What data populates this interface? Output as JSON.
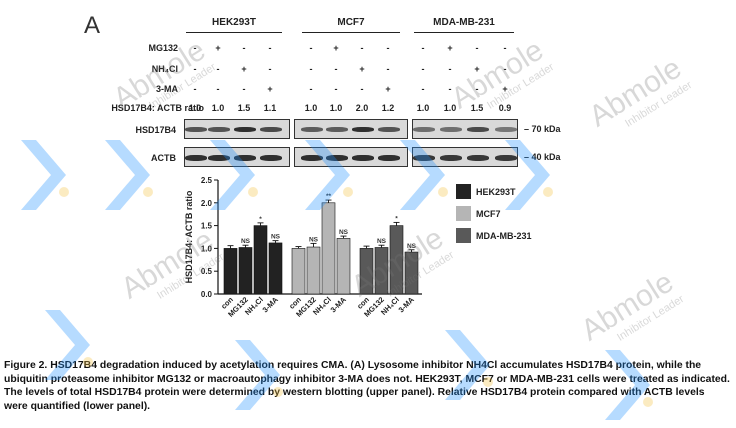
{
  "panel_letter": "A",
  "cell_lines": [
    "HEK293T",
    "MCF7",
    "MDA-MB-231"
  ],
  "treatment_rows": [
    {
      "label": "MG132",
      "values": [
        "-",
        "+",
        "-",
        "-",
        "-",
        "+",
        "-",
        "-",
        "-",
        "+",
        "-",
        "-"
      ]
    },
    {
      "label": "NH₄Cl",
      "values": [
        "-",
        "-",
        "+",
        "-",
        "-",
        "-",
        "+",
        "-",
        "-",
        "-",
        "+",
        "-"
      ]
    },
    {
      "label": "3-MA",
      "values": [
        "-",
        "-",
        "-",
        "+",
        "-",
        "-",
        "-",
        "+",
        "-",
        "-",
        "-",
        "+"
      ]
    }
  ],
  "ratio_label": "HSD17B4: ACTB ratio",
  "ratios": [
    "1.0",
    "1.0",
    "1.5",
    "1.1",
    "1.0",
    "1.0",
    "2.0",
    "1.2",
    "1.0",
    "1.0",
    "1.5",
    "0.9"
  ],
  "blots": [
    {
      "label": "HSD17B4",
      "kda": "– 70 kDa",
      "intensity": [
        0.75,
        0.75,
        0.95,
        0.8,
        0.7,
        0.7,
        0.95,
        0.75,
        0.6,
        0.6,
        0.8,
        0.55
      ]
    },
    {
      "label": "ACTB",
      "kda": "– 40 kDa",
      "intensity": [
        0.95,
        0.95,
        0.95,
        0.95,
        0.95,
        0.95,
        0.95,
        0.95,
        0.9,
        0.9,
        0.9,
        0.9
      ]
    }
  ],
  "chart_data": {
    "type": "bar",
    "ylabel": "HSD17B4: ACTB ratio",
    "ylim": [
      0,
      2.5
    ],
    "yticks": [
      "0.0",
      "0.5",
      "1.0",
      "1.5",
      "2.0",
      "2.5"
    ],
    "categories": [
      "con",
      "MG132",
      "NH₄Cl",
      "3-MA"
    ],
    "series": [
      {
        "name": "HEK293T",
        "color": "#222222",
        "values": [
          1.0,
          1.02,
          1.5,
          1.12
        ],
        "errors": [
          0.06,
          0.05,
          0.06,
          0.05
        ],
        "labels": [
          "",
          "NS",
          "*",
          "NS"
        ]
      },
      {
        "name": "MCF7",
        "color": "#b5b5b5",
        "values": [
          1.0,
          1.03,
          2.0,
          1.22
        ],
        "errors": [
          0.04,
          0.08,
          0.06,
          0.05
        ],
        "labels": [
          "",
          "NS",
          "**",
          "NS"
        ]
      },
      {
        "name": "MDA-MB-231",
        "color": "#595959",
        "values": [
          1.0,
          1.02,
          1.5,
          0.92
        ],
        "errors": [
          0.05,
          0.05,
          0.07,
          0.05
        ],
        "labels": [
          "",
          "NS",
          "*",
          "NS"
        ]
      }
    ],
    "legend": "right"
  },
  "caption": "Figure 2. HSD17B4 degradation induced by acetylation requires CMA. (A) Lysosome inhibitor NH4Cl accumulates HSD17B4 protein, while the ubiquitin proteasome inhibitor MG132 or macroautophagy inhibitor 3-MA does not. HEK293T, MCF7 or MDA-MB-231 cells were treated as indicated. The levels of total HSD17B4 protein were determined by western blotting (upper panel). Relative HSD17B4 protein compared with ACTB levels were quantified (lower panel).",
  "watermark": {
    "brand": "Abmole",
    "sub": "Inhibitor Leader",
    "accent": "#1e90ff",
    "dot": "#f5c242"
  }
}
